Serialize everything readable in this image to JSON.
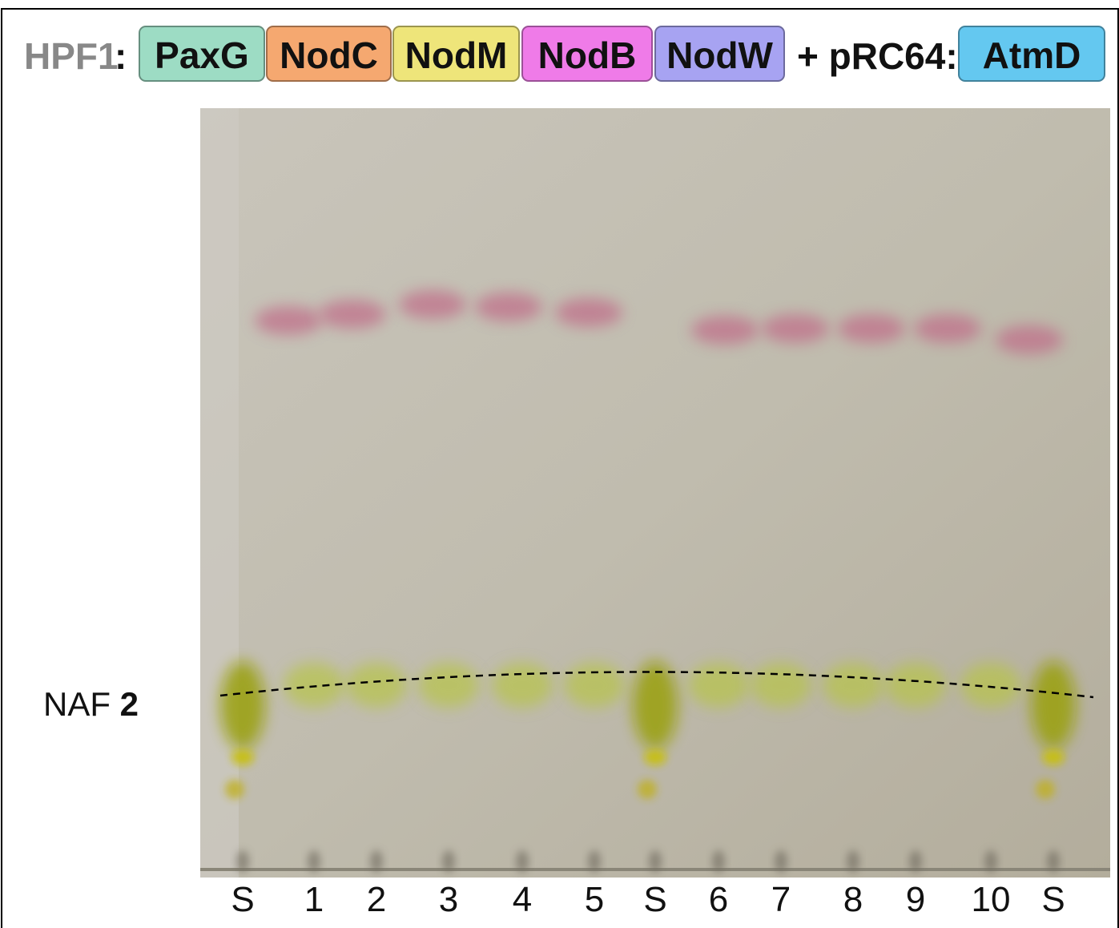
{
  "header": {
    "prefix": "HPF1",
    "colon": ":",
    "genes": [
      {
        "label": "PaxG",
        "color": "#9ddcc4"
      },
      {
        "label": "NodC",
        "color": "#f5a870"
      },
      {
        "label": "NodM",
        "color": "#eee57a"
      },
      {
        "label": "NodB",
        "color": "#ef7be8"
      },
      {
        "label": "NodW",
        "color": "#a7a3f2"
      }
    ],
    "plus_text": "+ pRC64:",
    "plasmid_gene": {
      "label": "AtmD",
      "color": "#64c8f0"
    }
  },
  "annotation": {
    "label": "NAF",
    "number": "2"
  },
  "lanes": [
    "S",
    "1",
    "2",
    "3",
    "4",
    "5",
    "S",
    "6",
    "7",
    "8",
    "9",
    "10",
    "S"
  ]
}
